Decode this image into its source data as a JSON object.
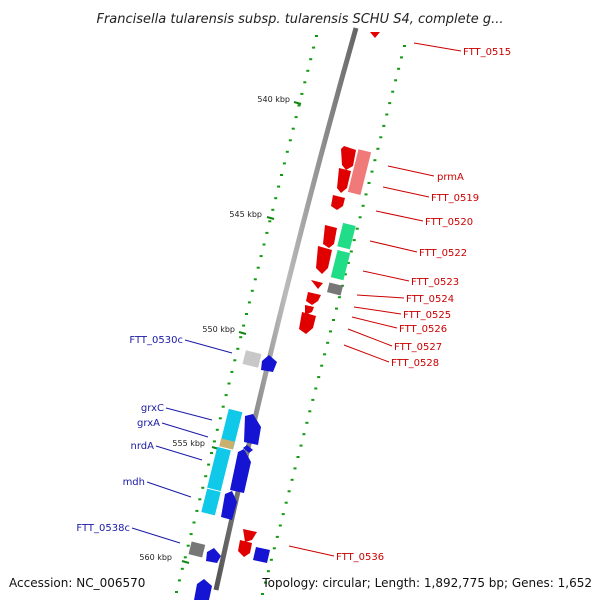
{
  "title": "Francisella tularensis subsp. tularensis SCHU S4, complete g...",
  "footer": {
    "accession": "Accession: NC_006570",
    "summary": "Topology: circular; Length: 1,892,775 bp; Genes: 1,652"
  },
  "scale_labels": [
    "540 kbp",
    "545 kbp",
    "550 kbp",
    "555 kbp",
    "560 kbp"
  ],
  "colors": {
    "forward_strand": "#e60000",
    "reverse_strand": "#1414d2",
    "rRNA_like_pink": "#f07a7a",
    "green_feature": "#22dd88",
    "cyan_feature": "#10c8e8",
    "grey_feature": "#777777",
    "light_grey_feature": "#c8c8c8",
    "backbone": "#888888",
    "tick_marks": "#119911",
    "label_red": "#cc0000",
    "label_blue": "#1a1aa6"
  },
  "gene_labels_right": [
    "FTT_0515",
    "prmA",
    "FTT_0519",
    "FTT_0520",
    "FTT_0522",
    "FTT_0523",
    "FTT_0524",
    "FTT_0525",
    "FTT_0526",
    "FTT_0527",
    "FTT_0528",
    "FTT_0536"
  ],
  "gene_labels_left": [
    "FTT_0530c",
    "grxC",
    "grxA",
    "nrdA",
    "mdh",
    "FTT_0538c"
  ]
}
